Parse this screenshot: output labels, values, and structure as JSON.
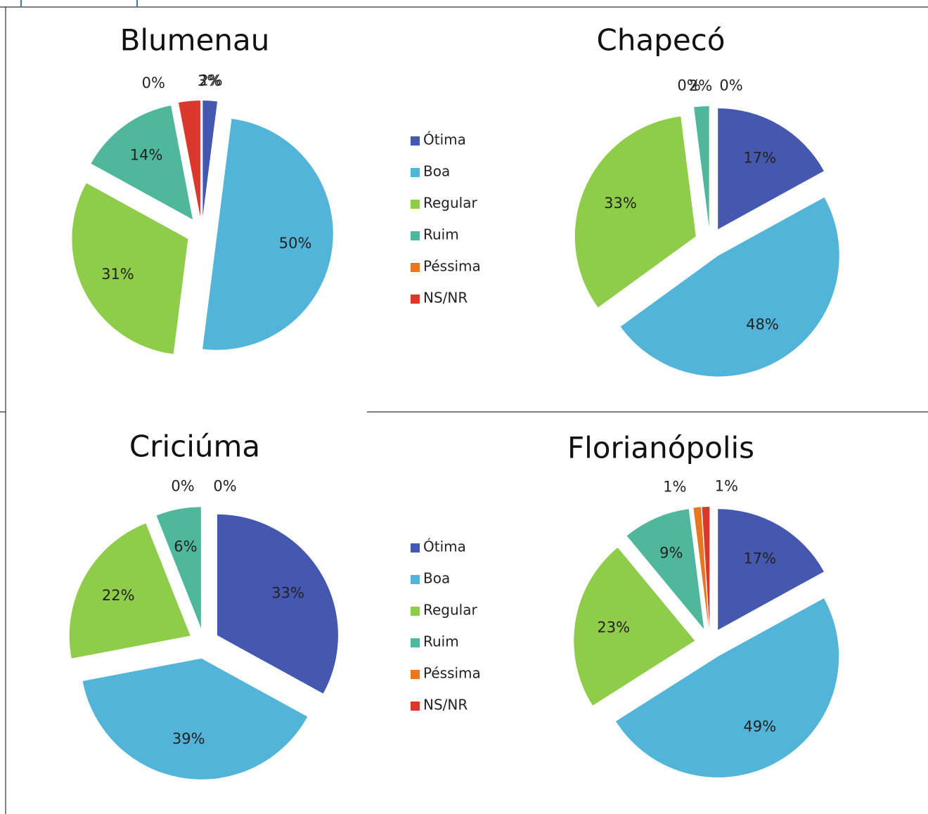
{
  "chart_data": [
    {
      "type": "pie",
      "title": "Blumenau",
      "categories": [
        "Ótima",
        "Boa",
        "Regular",
        "Ruim",
        "Péssima",
        "NS/NR"
      ],
      "values": [
        2,
        50,
        31,
        14,
        0,
        3
      ],
      "value_labels": [
        "2%",
        "50%",
        "31%",
        "14%",
        "0%",
        "3%"
      ],
      "colors": [
        "#4458b0",
        "#52b4d8",
        "#8fcc4a",
        "#4fb89c",
        "#e87722",
        "#d9382a"
      ]
    },
    {
      "type": "pie",
      "title": "Chapecó",
      "categories": [
        "Ótima",
        "Boa",
        "Regular",
        "Ruim",
        "Péssima",
        "NS/NR"
      ],
      "values": [
        17,
        48,
        33,
        2,
        0,
        0
      ],
      "value_labels": [
        "17%",
        "48%",
        "33%",
        "2%",
        "0%",
        "0%"
      ],
      "colors": [
        "#4458b0",
        "#52b4d8",
        "#8fcc4a",
        "#4fb89c",
        "#e87722",
        "#d9382a"
      ]
    },
    {
      "type": "pie",
      "title": "Criciúma",
      "categories": [
        "Ótima",
        "Boa",
        "Regular",
        "Ruim",
        "Péssima",
        "NS/NR"
      ],
      "values": [
        33,
        39,
        22,
        6,
        0,
        0
      ],
      "value_labels": [
        "33%",
        "39%",
        "22%",
        "6%",
        "0%",
        "0%"
      ],
      "colors": [
        "#4458b0",
        "#52b4d8",
        "#8fcc4a",
        "#4fb89c",
        "#e87722",
        "#d9382a"
      ]
    },
    {
      "type": "pie",
      "title": "Florianópolis",
      "categories": [
        "Ótima",
        "Boa",
        "Regular",
        "Ruim",
        "Péssima",
        "NS/NR"
      ],
      "values": [
        17,
        49,
        23,
        9,
        1,
        1
      ],
      "value_labels": [
        "17%",
        "49%",
        "23%",
        "9%",
        "1%",
        "1%"
      ],
      "colors": [
        "#4458b0",
        "#52b4d8",
        "#8fcc4a",
        "#4fb89c",
        "#e87722",
        "#d9382a"
      ]
    }
  ]
}
